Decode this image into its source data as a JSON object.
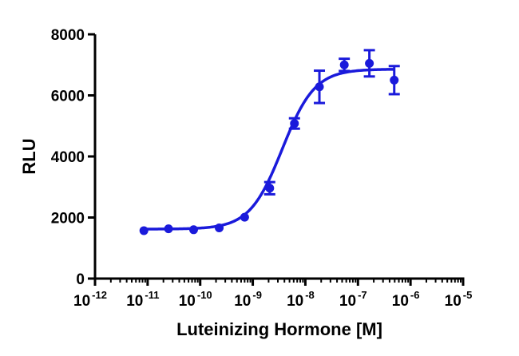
{
  "chart_data": {
    "type": "scatter",
    "title": "",
    "xlabel": "Luteinizing Hormone [M]",
    "ylabel": "RLU",
    "x_scale": "log",
    "xlim": [
      1e-12,
      1e-05
    ],
    "ylim": [
      0,
      8000
    ],
    "grid": false,
    "legend": "none",
    "x_ticks": [
      {
        "base": "10",
        "exp": "-12"
      },
      {
        "base": "10",
        "exp": "-11"
      },
      {
        "base": "10",
        "exp": "-10"
      },
      {
        "base": "10",
        "exp": "-9"
      },
      {
        "base": "10",
        "exp": "-8"
      },
      {
        "base": "10",
        "exp": "-7"
      },
      {
        "base": "10",
        "exp": "-6"
      },
      {
        "base": "10",
        "exp": "-5"
      }
    ],
    "y_ticks": [
      "0",
      "2000",
      "4000",
      "6000",
      "8000"
    ],
    "color": "#1a1adb",
    "series": [
      {
        "points": [
          {
            "x": 8.5e-12,
            "y": 1570,
            "err": 0
          },
          {
            "x": 2.5e-11,
            "y": 1630,
            "err": 0
          },
          {
            "x": 7.5e-11,
            "y": 1600,
            "err": 0
          },
          {
            "x": 2.3e-10,
            "y": 1660,
            "err": 0
          },
          {
            "x": 7e-10,
            "y": 2010,
            "err": 0
          },
          {
            "x": 2.1e-09,
            "y": 2960,
            "err": 200
          },
          {
            "x": 6.2e-09,
            "y": 5080,
            "err": 170
          },
          {
            "x": 1.85e-08,
            "y": 6280,
            "err": 530
          },
          {
            "x": 5.5e-08,
            "y": 7000,
            "err": 200
          },
          {
            "x": 1.65e-07,
            "y": 7050,
            "err": 430
          },
          {
            "x": 4.9e-07,
            "y": 6500,
            "err": 460
          }
        ],
        "fit": {
          "model": "4PL",
          "bottom": 1620,
          "top": 6860,
          "logEC50": -8.44,
          "hill": 1.4
        }
      }
    ]
  }
}
